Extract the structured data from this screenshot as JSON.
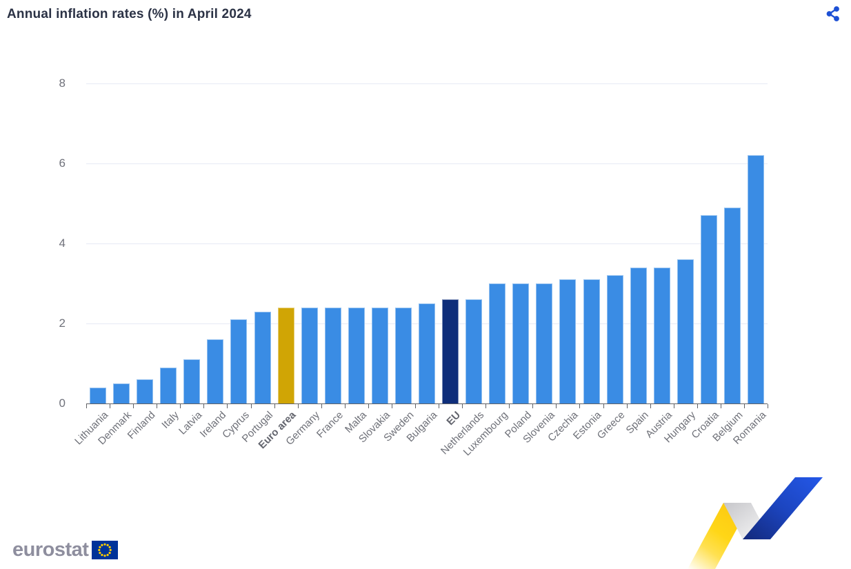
{
  "page": {
    "title": "Annual inflation rates (%) in April 2024"
  },
  "icons": {
    "share": "share-icon",
    "eu_flag": "eu-flag-icon",
    "ribbon": "eurostat-ribbon-graphic"
  },
  "footer": {
    "logo_text": "eurostat"
  },
  "colors": {
    "bar_default": "#3a8ce4",
    "bar_euro_area": "#d0a505",
    "bar_eu": "#0f2e7a",
    "grid": "#e6e9f4",
    "axis": "#5f6064",
    "tick_label": "#6f717a",
    "x_label": "#6e7078",
    "x_label_bold": "#63656e",
    "title": "#2b3245",
    "share_icon": "#1d50d4",
    "logo_text": "#8e8e9e",
    "flag_bg": "#003399",
    "flag_stars": "#ffcc00"
  },
  "chart_data": {
    "type": "bar",
    "title": "Annual inflation rates (%) in April 2024",
    "xlabel": "",
    "ylabel": "",
    "ylim": [
      0,
      8
    ],
    "yticks": [
      0,
      2,
      4,
      6,
      8
    ],
    "grid": true,
    "legend": false,
    "categories": [
      "Lithuania",
      "Denmark",
      "Finland",
      "Italy",
      "Latvia",
      "Ireland",
      "Cyprus",
      "Portugal",
      "Euro area",
      "Germany",
      "France",
      "Malta",
      "Slovakia",
      "Sweden",
      "Bulgaria",
      "EU",
      "Netherlands",
      "Luxembourg",
      "Poland",
      "Slovenia",
      "Czechia",
      "Estonia",
      "Greece",
      "Spain",
      "Austria",
      "Hungary",
      "Croatia",
      "Belgium",
      "Romania"
    ],
    "values": [
      0.4,
      0.5,
      0.6,
      0.9,
      1.1,
      1.6,
      2.1,
      2.3,
      2.4,
      2.4,
      2.4,
      2.4,
      2.4,
      2.4,
      2.5,
      2.6,
      2.6,
      3.0,
      3.0,
      3.0,
      3.1,
      3.1,
      3.2,
      3.4,
      3.4,
      3.6,
      4.7,
      4.9,
      6.2
    ],
    "bold_categories": [
      "Euro area",
      "EU"
    ],
    "bar_colors": {
      "default": "#3a8ce4",
      "Euro area": "#d0a505",
      "EU": "#0f2e7a"
    }
  }
}
